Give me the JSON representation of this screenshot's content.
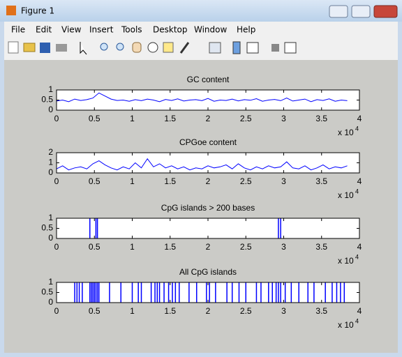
{
  "window": {
    "title": "Figure 1"
  },
  "menu": [
    "File",
    "Edit",
    "View",
    "Insert",
    "Tools",
    "Desktop",
    "Window",
    "Help"
  ],
  "chart_data": [
    {
      "type": "line",
      "title": "GC content",
      "x_scale_label": "x 10",
      "x_scale_exponent": "4",
      "xlim": [
        0,
        40000
      ],
      "ylim": [
        0,
        1
      ],
      "yticks": [
        0,
        0.5,
        1
      ],
      "xticks": [
        0,
        {
          "value": 5000,
          "label": "0.5"
        },
        {
          "value": 10000,
          "label": "1"
        },
        {
          "value": 15000,
          "label": "1.5"
        },
        {
          "value": 20000,
          "label": "2"
        },
        {
          "value": 25000,
          "label": "2.5"
        },
        {
          "value": 30000,
          "label": "3"
        },
        {
          "value": 35000,
          "label": "3.5"
        },
        {
          "value": 40000,
          "label": "4"
        }
      ],
      "series": [
        {
          "color": "#0000ff",
          "x": [
            0,
            800,
            1600,
            2400,
            3200,
            4000,
            4800,
            5600,
            6400,
            7200,
            8000,
            8800,
            9600,
            10400,
            11200,
            12000,
            12800,
            13600,
            14400,
            15200,
            16000,
            16800,
            17600,
            18400,
            19200,
            20000,
            20800,
            21600,
            22400,
            23200,
            24000,
            24800,
            25600,
            26400,
            27200,
            28000,
            28800,
            29600,
            30400,
            31200,
            32000,
            32800,
            33600,
            34400,
            35200,
            36000,
            36800,
            37600,
            38400
          ],
          "values": [
            0.45,
            0.5,
            0.42,
            0.55,
            0.48,
            0.52,
            0.6,
            0.85,
            0.7,
            0.55,
            0.48,
            0.5,
            0.44,
            0.52,
            0.47,
            0.55,
            0.5,
            0.42,
            0.53,
            0.48,
            0.56,
            0.45,
            0.5,
            0.52,
            0.47,
            0.58,
            0.44,
            0.5,
            0.48,
            0.55,
            0.46,
            0.52,
            0.49,
            0.57,
            0.44,
            0.5,
            0.53,
            0.47,
            0.6,
            0.45,
            0.5,
            0.55,
            0.42,
            0.52,
            0.48,
            0.56,
            0.44,
            0.5,
            0.47
          ]
        }
      ]
    },
    {
      "type": "line",
      "title": "CPGoe content",
      "x_scale_label": "x 10",
      "x_scale_exponent": "4",
      "xlim": [
        0,
        40000
      ],
      "ylim": [
        0,
        2
      ],
      "yticks": [
        0,
        1,
        2
      ],
      "xticks": [
        0,
        {
          "value": 5000,
          "label": "0.5"
        },
        {
          "value": 10000,
          "label": "1"
        },
        {
          "value": 15000,
          "label": "1.5"
        },
        {
          "value": 20000,
          "label": "2"
        },
        {
          "value": 25000,
          "label": "2.5"
        },
        {
          "value": 30000,
          "label": "3"
        },
        {
          "value": 35000,
          "label": "3.5"
        },
        {
          "value": 40000,
          "label": "4"
        }
      ],
      "series": [
        {
          "color": "#0000ff",
          "x": [
            0,
            800,
            1600,
            2400,
            3200,
            4000,
            4800,
            5600,
            6400,
            7200,
            8000,
            8800,
            9600,
            10400,
            11200,
            12000,
            12800,
            13600,
            14400,
            15200,
            16000,
            16800,
            17600,
            18400,
            19200,
            20000,
            20800,
            21600,
            22400,
            23200,
            24000,
            24800,
            25600,
            26400,
            27200,
            28000,
            28800,
            29600,
            30400,
            31200,
            32000,
            32800,
            33600,
            34400,
            35200,
            36000,
            36800,
            37600,
            38400
          ],
          "values": [
            0.4,
            0.7,
            0.3,
            0.5,
            0.6,
            0.4,
            0.9,
            1.2,
            0.8,
            0.5,
            0.3,
            0.6,
            0.4,
            1.0,
            0.5,
            1.4,
            0.6,
            0.9,
            0.5,
            0.7,
            0.4,
            0.6,
            0.3,
            0.5,
            0.4,
            0.7,
            0.5,
            0.6,
            0.8,
            0.4,
            0.9,
            0.5,
            0.3,
            0.6,
            0.4,
            0.7,
            0.5,
            0.6,
            1.1,
            0.5,
            0.4,
            0.7,
            0.3,
            0.5,
            0.8,
            0.4,
            0.6,
            0.5,
            0.7
          ]
        }
      ]
    },
    {
      "type": "bar",
      "title": "CpG islands > 200 bases",
      "x_scale_label": "x 10",
      "x_scale_exponent": "4",
      "xlim": [
        0,
        40000
      ],
      "ylim": [
        0,
        1
      ],
      "yticks": [
        0,
        0.5,
        1
      ],
      "xticks": [
        0,
        {
          "value": 5000,
          "label": "0.5"
        },
        {
          "value": 10000,
          "label": "1"
        },
        {
          "value": 15000,
          "label": "1.5"
        },
        {
          "value": 20000,
          "label": "2"
        },
        {
          "value": 25000,
          "label": "2.5"
        },
        {
          "value": 30000,
          "label": "3"
        },
        {
          "value": 35000,
          "label": "3.5"
        },
        {
          "value": 40000,
          "label": "4"
        }
      ],
      "series": [
        {
          "color": "#0000ff",
          "x": [
            4400,
            5200,
            5400,
            29300,
            29600
          ],
          "values": [
            1,
            1,
            1,
            1,
            1
          ]
        }
      ]
    },
    {
      "type": "bar",
      "title": "All CpG islands",
      "x_scale_label": "x 10",
      "x_scale_exponent": "4",
      "xlim": [
        0,
        40000
      ],
      "ylim": [
        0,
        1
      ],
      "yticks": [
        0,
        0.5,
        1
      ],
      "xticks": [
        0,
        {
          "value": 5000,
          "label": "0.5"
        },
        {
          "value": 10000,
          "label": "1"
        },
        {
          "value": 15000,
          "label": "1.5"
        },
        {
          "value": 20000,
          "label": "2"
        },
        {
          "value": 25000,
          "label": "2.5"
        },
        {
          "value": 30000,
          "label": "3"
        },
        {
          "value": 35000,
          "label": "3.5"
        },
        {
          "value": 40000,
          "label": "4"
        }
      ],
      "series": [
        {
          "color": "#0000ff",
          "x": [
            2400,
            2700,
            3000,
            3400,
            4400,
            4600,
            4800,
            5000,
            5200,
            5400,
            5600,
            7000,
            8500,
            10000,
            10800,
            11200,
            12500,
            13000,
            13300,
            13600,
            14200,
            14800,
            15300,
            15700,
            16200,
            17500,
            18500,
            19800,
            20200,
            21000,
            22500,
            23200,
            24100,
            25000,
            26400,
            27000,
            28000,
            28500,
            29000,
            29300,
            29600,
            30200,
            31000,
            32000,
            33200,
            34000,
            35500,
            36400,
            37000,
            37500,
            38000
          ],
          "values": [
            1,
            1,
            1,
            1,
            1,
            1,
            1,
            1,
            1,
            1,
            1,
            1,
            1,
            1,
            1,
            1,
            1,
            1,
            1,
            1,
            1,
            1,
            1,
            1,
            1,
            1,
            1,
            1,
            1,
            1,
            1,
            1,
            1,
            1,
            1,
            1,
            1,
            1,
            1,
            1,
            1,
            1,
            1,
            1,
            1,
            1,
            1,
            1,
            1,
            1,
            1
          ]
        }
      ]
    }
  ]
}
